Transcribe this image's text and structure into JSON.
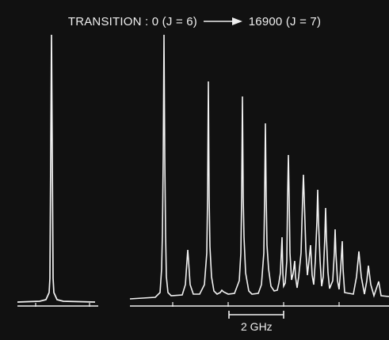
{
  "figure": {
    "title_left": "TRANSITION : 0 (J = 6)",
    "title_right": "16900 (J = 7)",
    "scale_label": "2 GHz",
    "colors": {
      "background": "#111111",
      "trace": "#f2f2f2"
    }
  }
}
